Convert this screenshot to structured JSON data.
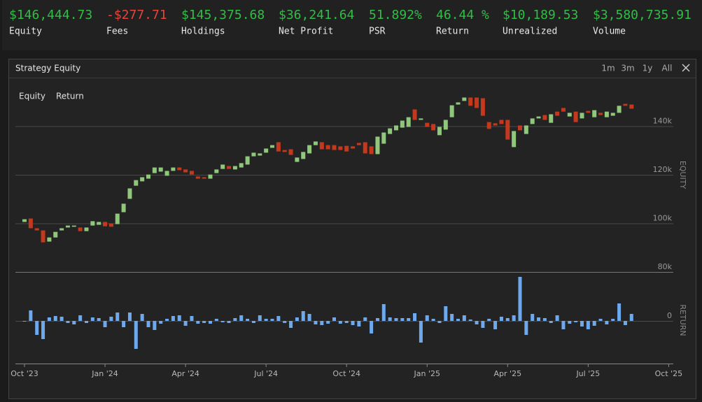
{
  "stats": [
    {
      "value": "$146,444.73",
      "label": "Equity",
      "color": "#2fbf45"
    },
    {
      "value": "-$277.71",
      "label": "Fees",
      "color": "#e8453a"
    },
    {
      "value": "$145,375.68",
      "label": "Holdings",
      "color": "#2fbf45"
    },
    {
      "value": "$36,241.64",
      "label": "Net Profit",
      "color": "#2fbf45"
    },
    {
      "value": "51.892%",
      "label": "PSR",
      "color": "#2fbf45"
    },
    {
      "value": "46.44 %",
      "label": "Return",
      "color": "#2fbf45"
    },
    {
      "value": "$10,189.53",
      "label": "Unrealized",
      "color": "#2fbf45"
    },
    {
      "value": "$3,580,735.91",
      "label": "Volume",
      "color": "#2fbf45"
    }
  ],
  "panel": {
    "range_buttons": [
      "1m",
      "3m",
      "1y",
      "All"
    ]
  },
  "chart_data": [
    {
      "type": "candlestick",
      "title": "Strategy Equity",
      "y_label": "EQUITY",
      "categories": [
        "Oct '23",
        null,
        null,
        null,
        null,
        null,
        null,
        null,
        null,
        null,
        null,
        null,
        null,
        "Jan '24",
        null,
        null,
        null,
        null,
        null,
        null,
        null,
        null,
        null,
        null,
        null,
        null,
        "Apr '24",
        null,
        null,
        null,
        null,
        null,
        null,
        null,
        null,
        null,
        null,
        null,
        null,
        "Jul '24",
        null,
        null,
        null,
        null,
        null,
        null,
        null,
        null,
        null,
        null,
        null,
        null,
        "Oct '24",
        null,
        null,
        null,
        null,
        null,
        null,
        null,
        null,
        null,
        null,
        null,
        null,
        "Jan '25",
        null,
        null,
        null,
        null,
        null,
        null,
        null,
        null,
        null,
        null,
        null,
        null,
        "Apr '25",
        null,
        null,
        null,
        null,
        null,
        null,
        null,
        null,
        null,
        null,
        null,
        null,
        "Jul '25",
        null,
        null,
        null,
        null,
        null,
        null,
        null,
        null,
        null,
        null,
        null,
        null,
        "Oct '25"
      ],
      "series": [
        {
          "name": "Equity",
          "up_color": "#8fc77b",
          "down_color": "#c4391d",
          "open": [
            100600,
            102000,
            98000,
            97100,
            92500,
            94200,
            97100,
            98300,
            98600,
            98300,
            96800,
            99100,
            99400,
            100600,
            100000,
            99700,
            104600,
            110100,
            115500,
            117300,
            118400,
            120700,
            121300,
            119600,
            121600,
            123000,
            122200,
            121600,
            119300,
            119000,
            118400,
            120700,
            122400,
            123600,
            122200,
            123000,
            124200,
            127600,
            127900,
            129100,
            131100,
            133400,
            130200,
            130500,
            125300,
            126500,
            128800,
            132200,
            133400,
            132200,
            132200,
            131700,
            131900,
            131700,
            133100,
            133400,
            131700,
            128500,
            132800,
            136800,
            138300,
            139400,
            139700,
            146900,
            142600,
            141400,
            140900,
            136300,
            138600,
            143700,
            148900,
            150400,
            151800,
            151800,
            151500,
            141700,
            141200,
            142600,
            142600,
            131400,
            140300,
            136800,
            140900,
            143200,
            144600,
            141400,
            146000,
            147500,
            144000,
            146000,
            143200,
            146300,
            143700,
            145500,
            143700,
            144300,
            145500,
            149200,
            148900,
            null,
            null,
            null,
            null,
            null,
            null
          ],
          "close": [
            101700,
            98000,
            97100,
            92200,
            94200,
            96500,
            98000,
            99100,
            99100,
            96800,
            98300,
            100900,
            100600,
            98800,
            98600,
            104000,
            108100,
            114400,
            117800,
            119000,
            120100,
            123000,
            123000,
            121600,
            123000,
            121900,
            121000,
            120100,
            118400,
            118400,
            120100,
            122200,
            124200,
            122400,
            123600,
            124800,
            127600,
            129100,
            128800,
            130800,
            132200,
            129600,
            129400,
            128200,
            127100,
            129400,
            132200,
            133700,
            130500,
            130500,
            130200,
            130200,
            129600,
            130800,
            132200,
            128800,
            128500,
            135700,
            137400,
            139100,
            140300,
            142300,
            143700,
            142600,
            143200,
            139700,
            138300,
            139700,
            142600,
            148600,
            149800,
            151800,
            148400,
            147500,
            144300,
            138900,
            140300,
            140900,
            134500,
            138000,
            138300,
            140300,
            143200,
            144000,
            142600,
            144900,
            144300,
            146000,
            145500,
            141700,
            145500,
            145500,
            146600,
            144600,
            146000,
            145500,
            148400,
            148400,
            147200,
            null,
            null,
            null,
            null,
            null,
            null
          ]
        }
      ],
      "ylim": [
        80000,
        160000
      ],
      "yticks": [
        {
          "value": 80000,
          "label": "80k"
        },
        {
          "value": 100000,
          "label": "100k"
        },
        {
          "value": 120000,
          "label": "120k"
        },
        {
          "value": 140000,
          "label": "140k"
        }
      ],
      "grid": true
    },
    {
      "type": "bar",
      "y_label": "RETURN",
      "series": [
        {
          "name": "Return",
          "color": "#6ea9ee",
          "values": [
            -0.1,
            1.5,
            -2.0,
            -2.6,
            0.5,
            0.7,
            0.6,
            -0.3,
            -0.5,
            0.8,
            -0.3,
            0.5,
            0.4,
            -0.9,
            0.6,
            1.2,
            -0.9,
            1.2,
            -4.0,
            1.0,
            -0.9,
            -1.3,
            -0.4,
            0.3,
            0.7,
            0.8,
            -0.7,
            0.7,
            -0.4,
            -0.3,
            -0.4,
            0.3,
            -0.2,
            -0.3,
            0.4,
            0.8,
            0.3,
            -0.3,
            0.8,
            0.3,
            0.3,
            0.7,
            -0.3,
            -1.0,
            0.5,
            1.4,
            1.0,
            -0.5,
            -0.6,
            -0.4,
            0.5,
            -0.4,
            -0.3,
            -0.6,
            -0.8,
            0.5,
            -1.8,
            0.4,
            2.4,
            0.5,
            0.4,
            0.4,
            0.4,
            1.1,
            -3.1,
            0.8,
            0.3,
            -0.3,
            2.1,
            1.0,
            0.3,
            0.8,
            0.2,
            -0.5,
            -1.0,
            0.3,
            -1.2,
            0.6,
            0.4,
            0.8,
            6.3,
            -2.0,
            1.0,
            0.5,
            0.4,
            -0.3,
            0.8,
            -1.2,
            -0.4,
            -0.2,
            -0.8,
            -1.2,
            -0.7,
            0.3,
            -0.5,
            0.3,
            2.5,
            -0.6,
            1.0,
            null,
            null,
            null,
            null,
            null,
            null
          ]
        }
      ],
      "ylim": [
        -6.1,
        7
      ],
      "yticks": [
        0
      ]
    }
  ]
}
